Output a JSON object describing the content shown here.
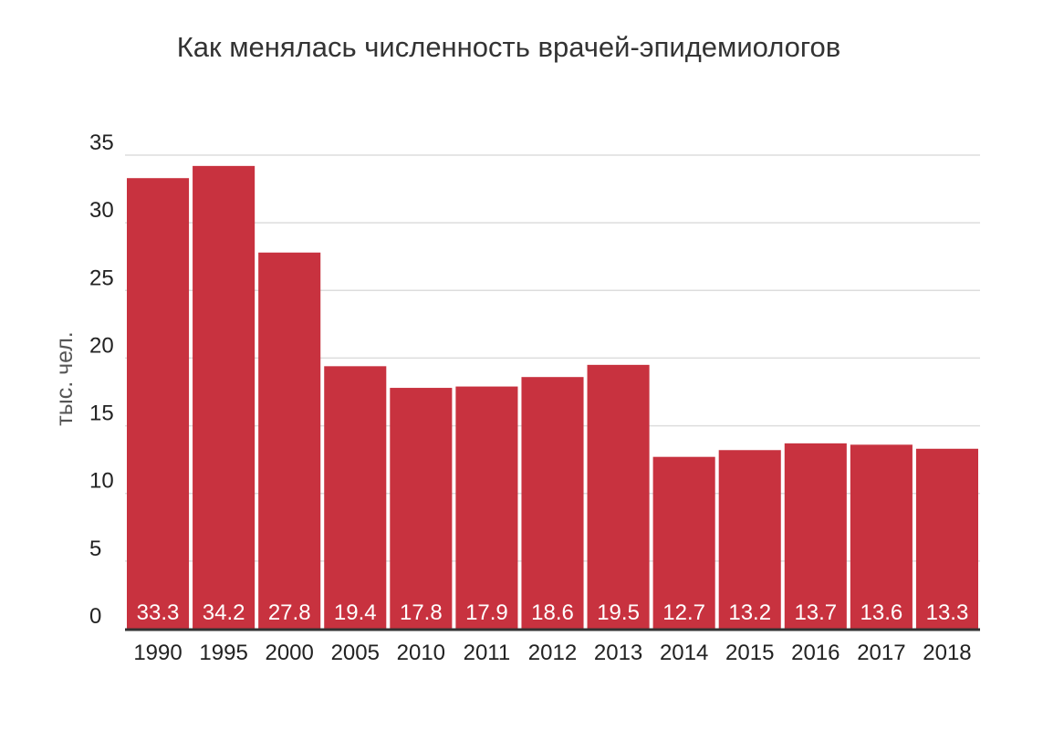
{
  "title": "Как менялась численность врачей-эпидемиологов",
  "chart_data": {
    "type": "bar",
    "title": "Как менялась численность врачей-эпидемиологов",
    "xlabel": "",
    "ylabel": "тыс. чел.",
    "ylim": [
      0,
      35
    ],
    "yticks": [
      0,
      5,
      10,
      15,
      20,
      25,
      30,
      35
    ],
    "grid": true,
    "bar_color": "#c8323f",
    "categories": [
      "1990",
      "1995",
      "2000",
      "2005",
      "2010",
      "2011",
      "2012",
      "2013",
      "2014",
      "2015",
      "2016",
      "2017",
      "2018"
    ],
    "values": [
      33.3,
      34.2,
      27.8,
      19.4,
      17.8,
      17.9,
      18.6,
      19.5,
      12.7,
      13.2,
      13.7,
      13.6,
      13.3
    ],
    "data_labels": [
      "33.3",
      "34.2",
      "27.8",
      "19.4",
      "17.8",
      "17.9",
      "18.6",
      "19.5",
      "12.7",
      "13.2",
      "13.7",
      "13.6",
      "13.3"
    ]
  }
}
